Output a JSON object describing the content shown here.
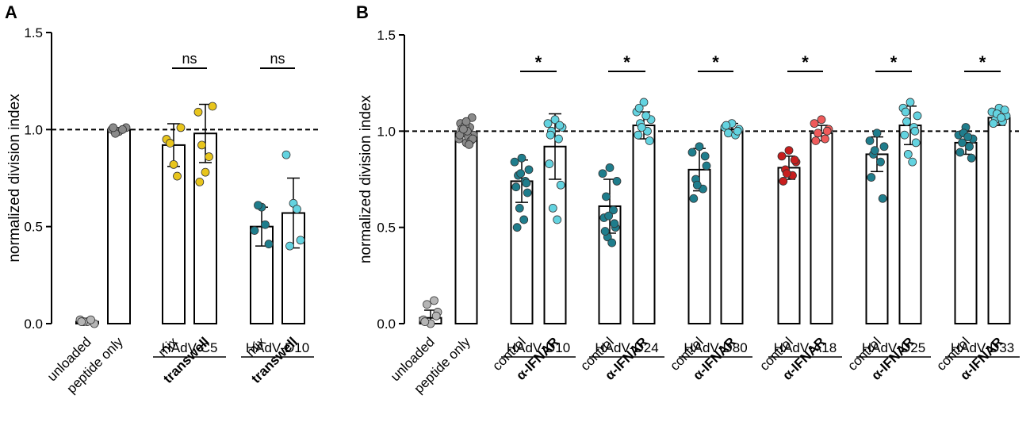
{
  "colors": {
    "grey": "#b5b5b5",
    "greyDark": "#8a8a8a",
    "yellow": "#e8c51c",
    "teal": "#1f7d8c",
    "cyan": "#63d3e0",
    "red": "#c81e1e",
    "redLight": "#ef5a5a"
  },
  "chart_data": [
    {
      "type": "bar",
      "panel_label": "A",
      "ylabel": "normalized division index",
      "ylim": [
        0,
        1.5
      ],
      "yticks": [
        "0.0",
        "0.5",
        "1.0",
        "1.5"
      ],
      "reference_line": 1.0,
      "categories": [
        "unloaded",
        "peptide only",
        "mix",
        "transwell",
        "mix",
        "transwell"
      ],
      "bold_categories": [
        3,
        5
      ],
      "values": [
        0.01,
        1.0,
        0.92,
        0.98,
        0.5,
        0.57
      ],
      "errors": [
        0.01,
        0.01,
        0.11,
        0.15,
        0.1,
        0.18
      ],
      "point_colors": [
        "grey",
        "greyDark",
        "yellow",
        "yellow",
        "teal",
        "cyan"
      ],
      "points": [
        [
          0.01,
          0.02,
          0.0,
          0.01,
          0.02,
          0.01
        ],
        [
          0.99,
          1.0,
          1.01,
          0.98,
          1.0,
          1.01
        ],
        [
          0.82,
          0.95,
          1.01,
          0.93,
          0.76
        ],
        [
          0.78,
          1.09,
          1.12,
          0.92,
          0.86,
          0.73
        ],
        [
          0.6,
          0.48,
          0.41,
          0.61,
          0.51
        ],
        [
          0.62,
          0.87,
          0.43,
          0.4,
          0.59
        ]
      ],
      "groups": [
        {
          "label": "HAdV-C5",
          "bars": [
            2,
            3
          ]
        },
        {
          "label": "HAdV-D10",
          "bars": [
            4,
            5
          ]
        }
      ],
      "significance": [
        {
          "bars": [
            2,
            3
          ],
          "label": "ns"
        },
        {
          "bars": [
            4,
            5
          ],
          "label": "ns"
        }
      ]
    },
    {
      "type": "bar",
      "panel_label": "B",
      "ylabel": "normalized division index",
      "ylim": [
        0,
        1.5
      ],
      "yticks": [
        "0.0",
        "0.5",
        "1.0",
        "1.5"
      ],
      "reference_line": 1.0,
      "categories": [
        "unloaded",
        "peptide only",
        "control",
        "α-IFNAR",
        "control",
        "α-IFNAR",
        "control",
        "α-IFNAR",
        "control",
        "α-IFNAR",
        "control",
        "α-IFNAR",
        "control",
        "α-IFNAR"
      ],
      "bold_categories": [
        3,
        5,
        7,
        9,
        11,
        13
      ],
      "values": [
        0.03,
        0.99,
        0.74,
        0.92,
        0.61,
        1.03,
        0.8,
        1.01,
        0.81,
        0.99,
        0.88,
        1.03,
        0.94,
        1.07
      ],
      "errors": [
        0.04,
        0.04,
        0.11,
        0.17,
        0.14,
        0.07,
        0.11,
        0.03,
        0.06,
        0.04,
        0.09,
        0.1,
        0.06,
        0.04
      ],
      "point_colors": [
        "grey",
        "greyDark",
        "teal",
        "cyan",
        "teal",
        "cyan",
        "teal",
        "cyan",
        "red",
        "redLight",
        "teal",
        "cyan",
        "teal",
        "cyan"
      ],
      "points": [
        [
          0.0,
          0.02,
          0.06,
          0.1,
          0.12,
          0.01,
          0.04
        ],
        [
          0.94,
          0.96,
          0.98,
          1.0,
          1.02,
          1.04,
          1.07,
          0.99,
          0.97,
          1.01,
          0.95,
          1.03,
          1.0,
          0.98,
          0.96,
          1.01,
          0.93,
          1.05
        ],
        [
          0.86,
          0.84,
          0.8,
          0.77,
          0.74,
          0.71,
          0.68,
          0.6,
          0.54,
          0.5,
          0.73,
          0.78
        ],
        [
          1.06,
          1.04,
          1.02,
          1.0,
          0.96,
          0.83,
          0.72,
          0.6,
          0.54,
          0.98,
          1.03
        ],
        [
          0.81,
          0.78,
          0.74,
          0.66,
          0.59,
          0.55,
          0.5,
          0.45,
          0.42,
          0.48,
          0.52,
          0.56
        ],
        [
          1.15,
          1.1,
          1.06,
          1.04,
          1.0,
          0.98,
          0.95,
          1.02,
          1.08,
          1.12
        ],
        [
          0.92,
          0.89,
          0.82,
          0.75,
          0.7,
          0.65,
          0.87,
          0.72
        ],
        [
          1.04,
          1.02,
          1.01,
          0.99,
          0.98,
          1.03,
          1.0
        ],
        [
          0.9,
          0.87,
          0.84,
          0.8,
          0.77,
          0.74,
          0.85,
          0.78
        ],
        [
          1.06,
          1.04,
          1.01,
          0.99,
          0.96,
          0.95,
          1.0
        ],
        [
          0.99,
          0.95,
          0.92,
          0.88,
          0.84,
          0.76,
          0.65,
          0.9
        ],
        [
          1.15,
          1.12,
          1.08,
          1.05,
          1.02,
          0.98,
          0.94,
          0.88,
          0.84,
          1.1,
          1.0
        ],
        [
          1.02,
          0.98,
          0.96,
          0.94,
          0.92,
          0.89,
          0.86,
          0.99,
          0.97
        ],
        [
          1.12,
          1.1,
          1.08,
          1.06,
          1.05,
          1.04,
          1.11,
          1.09,
          1.07
        ]
      ],
      "groups": [
        {
          "label": "HAdV-D10",
          "bars": [
            2,
            3
          ]
        },
        {
          "label": "HAdV-D24",
          "bars": [
            4,
            5
          ]
        },
        {
          "label": "HAdV-D80",
          "bars": [
            6,
            7
          ]
        },
        {
          "label": "HAdV-A18",
          "bars": [
            8,
            9
          ]
        },
        {
          "label": "HAdV-D25",
          "bars": [
            10,
            11
          ]
        },
        {
          "label": "HAdV-D33",
          "bars": [
            12,
            13
          ]
        }
      ],
      "significance": [
        {
          "bars": [
            2,
            3
          ],
          "label": "*"
        },
        {
          "bars": [
            4,
            5
          ],
          "label": "*"
        },
        {
          "bars": [
            6,
            7
          ],
          "label": "*"
        },
        {
          "bars": [
            8,
            9
          ],
          "label": "*"
        },
        {
          "bars": [
            10,
            11
          ],
          "label": "*"
        },
        {
          "bars": [
            12,
            13
          ],
          "label": "*"
        }
      ]
    }
  ]
}
